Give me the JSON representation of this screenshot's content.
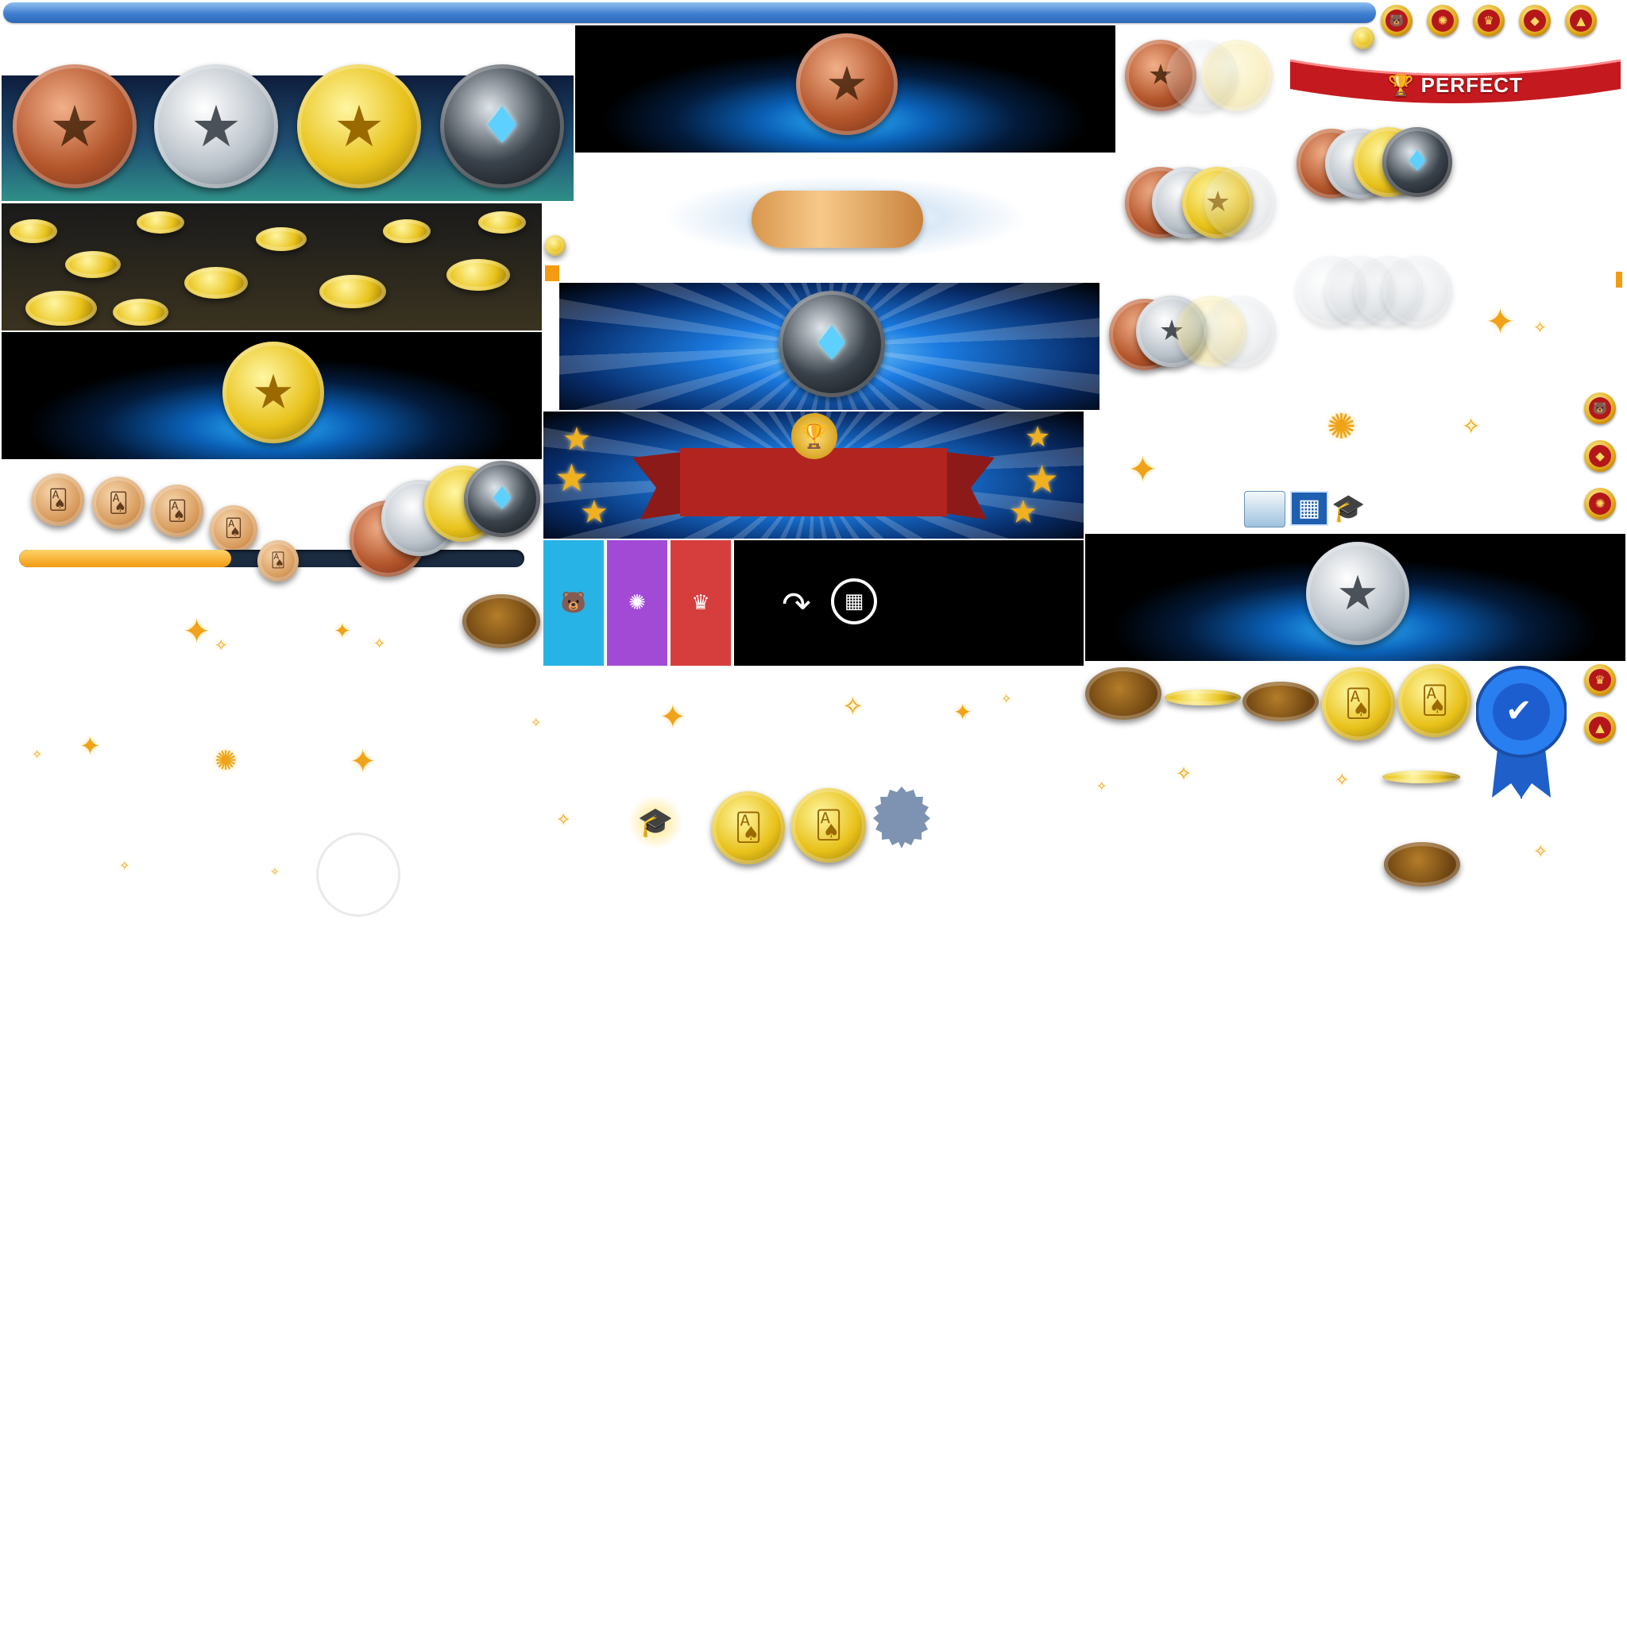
{
  "sheet": {
    "ribbon_label": "PERFECT",
    "progress": {
      "value": 0.42
    }
  },
  "icons": {
    "trophy": "trophy-icon",
    "calendar": "calendar-icon",
    "grid": "grid-icon",
    "grad_cap": "graduation-cap-icon",
    "bear": "polar-bear-icon",
    "web": "spider-web-icon",
    "crown": "crown-icon",
    "share_arrow": "curved-arrow-icon",
    "ribbon_check": "checkmark-icon"
  },
  "colors": {
    "tile_blue": "#28b3e6",
    "tile_purple": "#a24ad6",
    "tile_red": "#d63d3d",
    "tile_black": "#000000",
    "ribbon_red": "#c41a1f",
    "award_blue": "#1e6fd9"
  }
}
